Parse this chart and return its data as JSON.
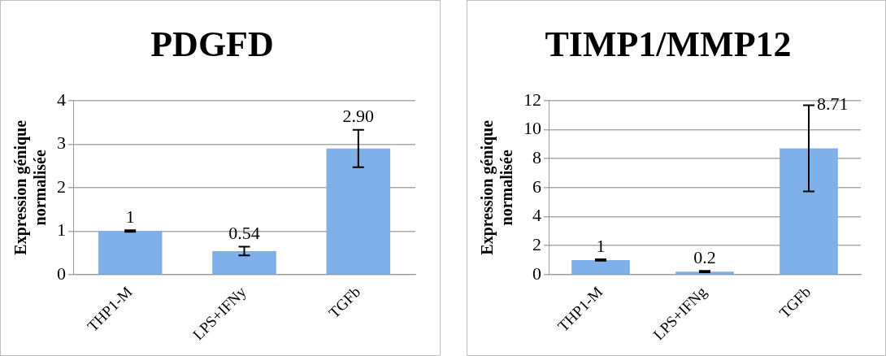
{
  "chart_data": [
    {
      "type": "bar",
      "title": "PDGFD",
      "ylabel": "Expression génique normalisée",
      "categories": [
        "THP1-M",
        "LPS+IFNy",
        "TGFb"
      ],
      "series": [
        {
          "color": "#7fb0ea",
          "values": [
            1,
            0.54,
            2.9
          ],
          "errors": [
            0.02,
            0.1,
            0.43
          ],
          "value_labels": [
            "1",
            "0.54",
            "2.90"
          ]
        }
      ],
      "ylim": [
        0,
        4
      ],
      "yticks": [
        0,
        1,
        2,
        3,
        4
      ],
      "grid": "y",
      "legend": false
    },
    {
      "type": "bar",
      "title": "TIMP1/MMP12",
      "ylabel": "Expression génique normalisée",
      "categories": [
        "THP1-M",
        "LPS+IFNg",
        "TGFb"
      ],
      "series": [
        {
          "color": "#7fb0ea",
          "values": [
            1,
            0.2,
            8.71
          ],
          "errors": [
            0.05,
            0.05,
            2.97
          ],
          "value_labels": [
            "1",
            "0.2",
            "8.71"
          ]
        }
      ],
      "ylim": [
        0,
        12
      ],
      "yticks": [
        0,
        2,
        4,
        6,
        8,
        10,
        12
      ],
      "grid": "y",
      "legend": false
    }
  ]
}
